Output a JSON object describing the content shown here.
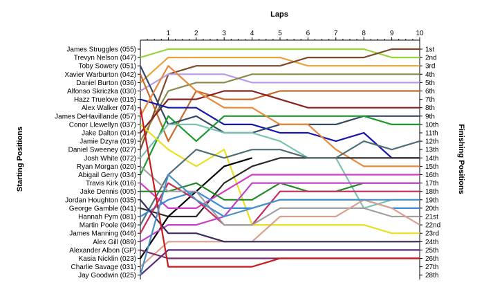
{
  "chart_data": {
    "type": "line",
    "title": "",
    "xlabel": "Laps",
    "ylabel_left": "Starting Positions",
    "ylabel_right": "Finishing Positions",
    "x": [
      0,
      1,
      2,
      3,
      4,
      5,
      6,
      7,
      8,
      9,
      10
    ],
    "x_tick_labels": [
      "1",
      "2",
      "3",
      "4",
      "5",
      "6",
      "7",
      "8",
      "9",
      "10"
    ],
    "y_range": [
      1,
      28
    ],
    "grid": false,
    "drivers": [
      "James Struggles (055)",
      "Trevyn Nelson (047)",
      "Toby Sowery (051)",
      "Xavier Warburton (042)",
      "Daniel Burton (036)",
      "Alfonso Skriczka (030)",
      "Hazz Truelove (015)",
      "Alex Walker (074)",
      "James DeHavillande (057)",
      "Conor Llewellyn (037)",
      "Jake Dalton (014)",
      "Jamie Dzyra (019)",
      "Daniel Sweeney (027)",
      "Josh White (072)",
      "Ryan Morgan (020)",
      "Abigail Gerry (034)",
      "Travis Kirk (016)",
      "Jake Dennis (005)",
      "Jordan Houghton (035)",
      "George Gamble (041)",
      "Hannah Pym (081)",
      "Martin Poole (049)",
      "James Manning (046)",
      "Alex Gill (089)",
      "Alexander Albon (GP)",
      "Kasia Nicklin (023)",
      "Charlie Savage (031)",
      "Jay Goodwin (025)"
    ],
    "finishing_labels": [
      "1st",
      "2nd",
      "3rd",
      "4th",
      "5th",
      "6th",
      "7th",
      "8th",
      "9th",
      "10th",
      "11th",
      "12th",
      "13th",
      "14th",
      "15th",
      "16th",
      "17th",
      "18th",
      "19th",
      "20th",
      "21st",
      "22nd",
      "23rd",
      "24th",
      "25th",
      "26th",
      "27th",
      "28th"
    ],
    "series": [
      {
        "color": "#9ad33a",
        "values": [
          2,
          1,
          1,
          1,
          1,
          1,
          1,
          1,
          1,
          2,
          2
        ]
      },
      {
        "color": "#e8a33a",
        "values": [
          5,
          2,
          2,
          2,
          2,
          2,
          3,
          3,
          3,
          3,
          3
        ]
      },
      {
        "color": "#7b4a2a",
        "values": [
          13,
          4,
          3,
          3,
          3,
          3,
          2,
          2,
          2,
          1,
          1
        ]
      },
      {
        "color": "#b89ae8",
        "values": [
          6,
          4,
          4,
          4,
          5,
          5,
          5,
          5,
          5,
          5,
          5
        ]
      },
      {
        "color": "#8a8a4a",
        "values": [
          12,
          6,
          5,
          5,
          4,
          4,
          4,
          4,
          4,
          4,
          4
        ]
      },
      {
        "color": "#c86a2a",
        "values": [
          4,
          12,
          6,
          7,
          7,
          6,
          6,
          6,
          6,
          6,
          6
        ]
      },
      {
        "color": "#8a2020",
        "values": [
          11,
          7,
          7,
          6,
          6,
          7,
          8,
          8,
          8,
          8,
          8
        ]
      },
      {
        "color": "#1515b0",
        "values": [
          7,
          8,
          8,
          10,
          10,
          11,
          11,
          12,
          11,
          14,
          14
        ]
      },
      {
        "color": "#334a66",
        "values": [
          3,
          10,
          9,
          11,
          11,
          10,
          10,
          10,
          9,
          9,
          9
        ]
      },
      {
        "color": "#1a9a2a",
        "values": [
          16,
          9,
          12,
          9,
          9,
          9,
          9,
          9,
          9,
          10,
          10
        ]
      },
      {
        "color": "#e8883a",
        "values": [
          9,
          3,
          6,
          8,
          8,
          10,
          10,
          13,
          15,
          15,
          15
        ]
      },
      {
        "color": "#7ac2b0",
        "values": [
          14,
          10,
          10,
          11,
          11,
          12,
          14,
          14,
          20,
          19,
          19
        ]
      },
      {
        "color": "#e8e020",
        "values": [
          10,
          13,
          15,
          13,
          22,
          22,
          22,
          22,
          22,
          23,
          23
        ]
      },
      {
        "color": "#2a2a2a",
        "values": [
          20,
          21,
          21,
          17,
          15,
          14,
          14,
          14,
          14,
          14,
          14
        ]
      },
      {
        "color": "#4f6e77",
        "values": [
          22,
          16,
          13,
          14,
          13,
          13,
          14,
          14,
          12,
          13,
          12
        ]
      },
      {
        "color": "#000000",
        "values": [
          26,
          21,
          18,
          15,
          14,
          null,
          null,
          null,
          null,
          null,
          null
        ]
      },
      {
        "color": "#d43ac4",
        "values": [
          17,
          20,
          20,
          18,
          16,
          16,
          16,
          16,
          16,
          16,
          16
        ]
      },
      {
        "color": "#3a8ad8",
        "values": [
          21,
          19,
          18,
          20,
          20,
          19,
          19,
          19,
          19,
          20,
          20
        ]
      },
      {
        "color": "#228a22",
        "values": [
          18,
          18,
          17,
          19,
          19,
          17,
          18,
          18,
          17,
          17,
          17
        ]
      },
      {
        "color": "#cc2a5a",
        "values": [
          23,
          17,
          19,
          22,
          22,
          18,
          18,
          18,
          18,
          18,
          18
        ]
      },
      {
        "color": "#a0a0a0",
        "values": [
          15,
          18,
          18,
          22,
          22,
          20,
          20,
          20,
          20,
          21,
          21
        ]
      },
      {
        "color": "#c040c8",
        "values": [
          24,
          22,
          22,
          21,
          17,
          17,
          17,
          17,
          17,
          17,
          17
        ]
      },
      {
        "color": "#d8a090",
        "values": [
          27,
          24,
          24,
          24,
          24,
          21,
          21,
          21,
          19,
          20,
          22
        ]
      },
      {
        "color": "#3a2a5a",
        "values": [
          19,
          23,
          23,
          24,
          24,
          24,
          24,
          24,
          24,
          24,
          24
        ]
      },
      {
        "color": "#5a2a7a",
        "values": [
          28,
          25,
          25,
          25,
          25,
          25,
          25,
          25,
          25,
          25,
          25
        ]
      },
      {
        "color": "#7a2a6a",
        "values": [
          25,
          26,
          26,
          26,
          26,
          26,
          26,
          26,
          26,
          26,
          26
        ]
      },
      {
        "color": "#cc1a1a",
        "values": [
          8,
          27,
          27,
          27,
          27,
          26,
          26,
          26,
          26,
          26,
          26
        ]
      },
      {
        "color": "#4a90c8",
        "values": [
          28,
          16,
          19,
          21,
          20,
          19,
          19,
          19,
          19,
          19,
          19
        ]
      }
    ]
  }
}
